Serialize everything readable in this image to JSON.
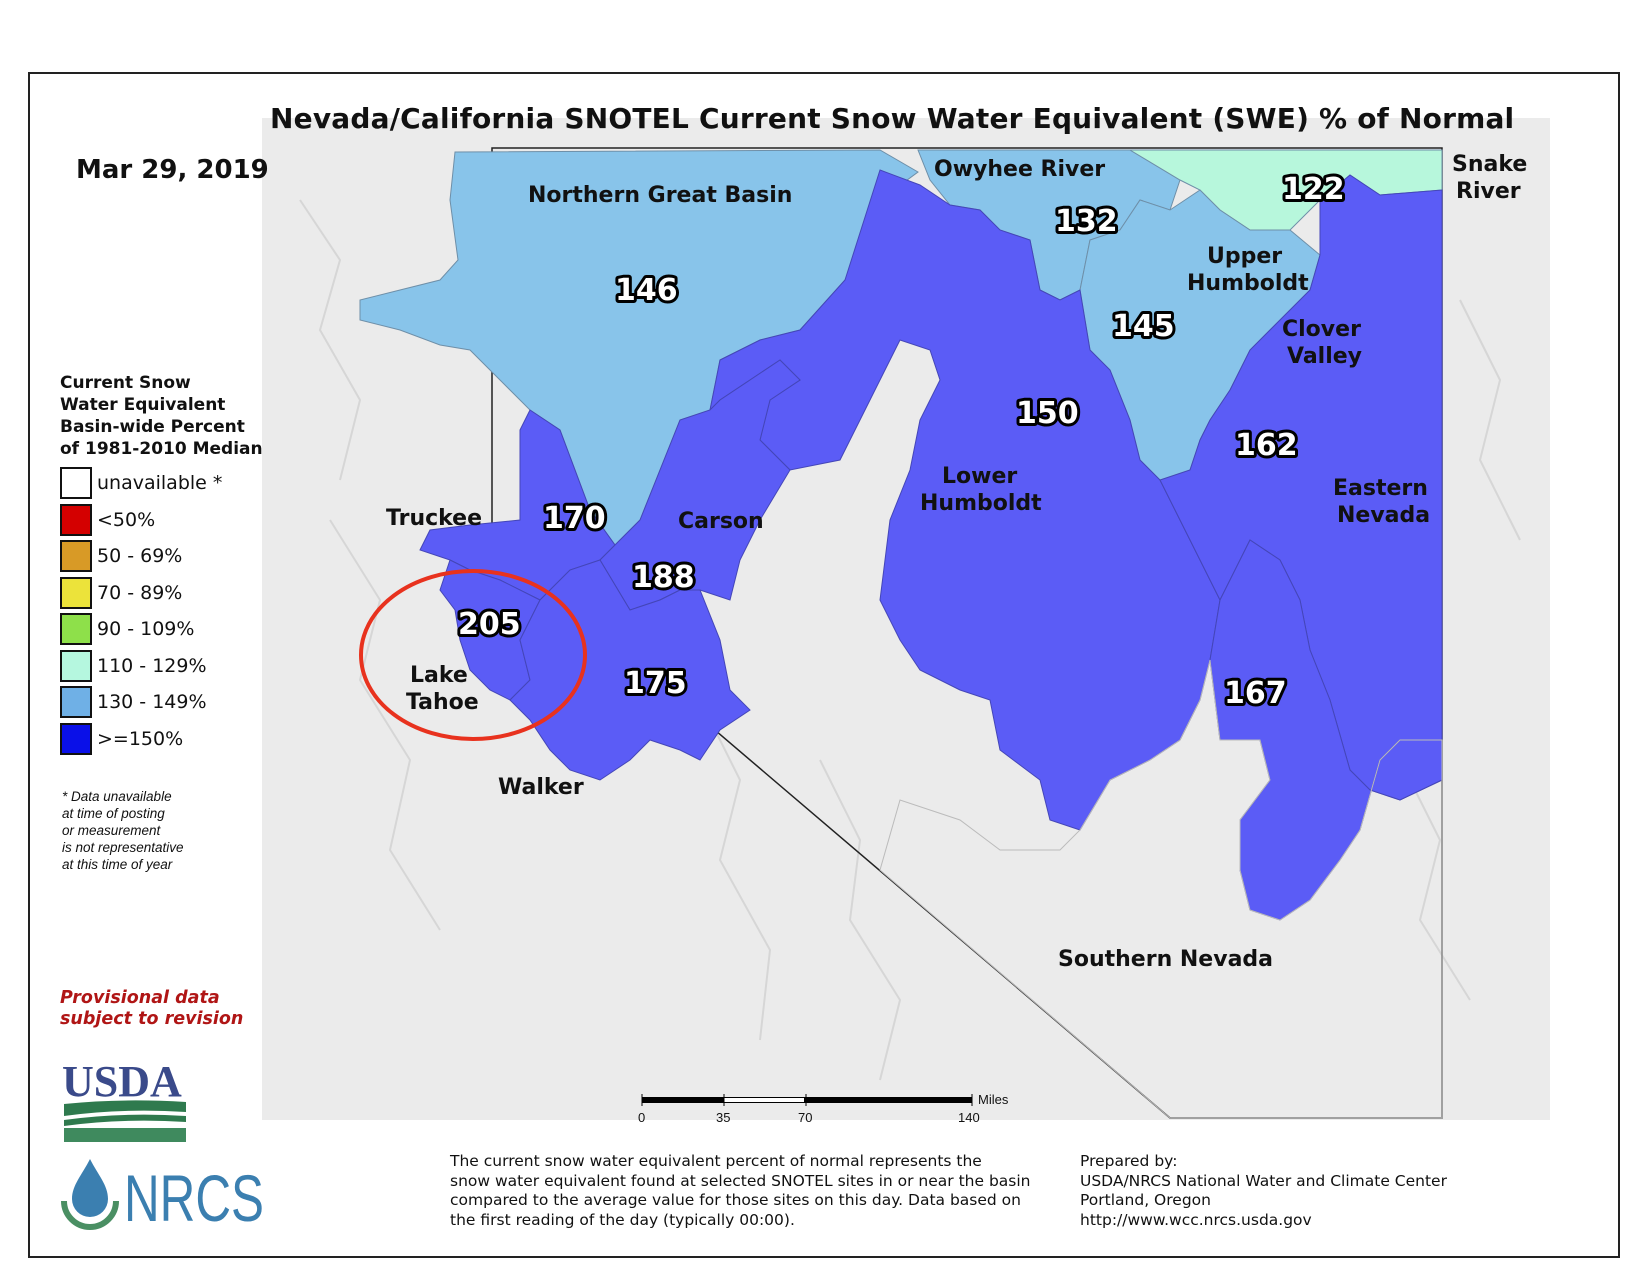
{
  "title": "Nevada/California SNOTEL Current Snow Water Equivalent (SWE) % of Normal",
  "date": "Mar 29, 2019",
  "legend": {
    "title": "Current Snow\nWater Equivalent\nBasin-wide Percent\nof 1981-2010 Median",
    "items": [
      {
        "label": "unavailable *",
        "color": "#ffffff"
      },
      {
        "label": "<50%",
        "color": "#d40000"
      },
      {
        "label": "50 - 69%",
        "color": "#d89a26"
      },
      {
        "label": "70 - 89%",
        "color": "#ece33a"
      },
      {
        "label": "90 - 109%",
        "color": "#8ee04a"
      },
      {
        "label": "110 - 129%",
        "color": "#b5f7df"
      },
      {
        "label": "130 - 149%",
        "color": "#6fb0e6"
      },
      {
        "label": ">=150%",
        "color": "#0a10e8"
      }
    ],
    "note": "*  Data unavailable\n    at time of posting\n    or measurement\n    is not representative\n    at this time of year"
  },
  "provisional": "Provisional data\nsubject to revision",
  "logos": {
    "usda": "USDA",
    "nrcs": "NRCS"
  },
  "basins": [
    {
      "name": "Northern Great Basin",
      "percent": "146",
      "class": "130 - 149%"
    },
    {
      "name": "Owyhee River",
      "percent": "132",
      "class": "130 - 149%"
    },
    {
      "name": "Snake River",
      "percent": "122",
      "class": "110 - 129%"
    },
    {
      "name": "Upper Humboldt",
      "percent": "145",
      "class": "130 - 149%"
    },
    {
      "name": "Clover Valley",
      "percent": "162",
      "class": ">=150%"
    },
    {
      "name": "Lower Humboldt",
      "percent": "150",
      "class": ">=150%"
    },
    {
      "name": "Truckee",
      "percent": "170",
      "class": ">=150%"
    },
    {
      "name": "Carson",
      "percent": "188",
      "class": ">=150%"
    },
    {
      "name": "Lake Tahoe",
      "percent": "205",
      "class": ">=150%"
    },
    {
      "name": "Walker",
      "percent": "175",
      "class": ">=150%"
    },
    {
      "name": "Eastern Nevada",
      "percent": "167",
      "class": ">=150%"
    },
    {
      "name": "Southern Nevada",
      "percent": "",
      "class": "unavailable *"
    }
  ],
  "colors": {
    "basin_150": "#5b5cf6",
    "basin_130": "#88c4ea",
    "basin_110": "#b7f7dc",
    "highlight": "#e8321e",
    "relief": "#ececec"
  },
  "scale_bar": {
    "unit": "Miles",
    "ticks": [
      "0",
      "35",
      "70",
      "140"
    ]
  },
  "footer": {
    "description": "The current snow water equivalent percent of normal represents the\nsnow water equivalent found at selected SNOTEL sites in or near the basin\ncompared to the average value for those sites on this day. Data based on\nthe first reading of the day (typically 00:00).",
    "prepared_by": "Prepared by:\nUSDA/NRCS National Water and Climate Center\nPortland, Oregon\nhttp://www.wcc.nrcs.usda.gov"
  }
}
